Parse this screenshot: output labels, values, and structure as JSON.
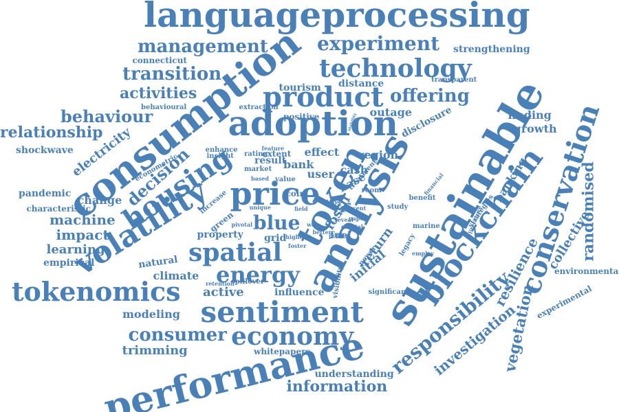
{
  "color": "#4a80b8",
  "words": [
    "languageprocessing",
    "consumption",
    "adoption",
    "sustainable",
    "analysis",
    "token",
    "blockchain",
    "conservation",
    "performance",
    "sentiment",
    "tokenomics",
    "volatility",
    "housing",
    "price",
    "spatial",
    "product",
    "technology",
    "economy",
    "experiment",
    "management",
    "transition",
    "offering",
    "energy",
    "consumer",
    "information",
    "behaviour",
    "relationship",
    "responsibility",
    "activities",
    "decision",
    "electricity",
    "machine",
    "impact",
    "learning",
    "blue",
    "randomised",
    "resilience",
    "vegetation",
    "investigation",
    "initial",
    "return",
    "collective",
    "banking",
    "growth",
    "finding",
    "strengthening",
    "connecticut",
    "tourism",
    "distance",
    "outage",
    "disclosure",
    "shockwave",
    "pandemic",
    "change",
    "characteristic",
    "empirical",
    "natural",
    "climate",
    "active",
    "modeling",
    "trimming",
    "whitepapers",
    "understanding",
    "influence",
    "property",
    "grid",
    "fuel",
    "green",
    "bank",
    "user",
    "cash",
    "base",
    "region",
    "effect",
    "result",
    "extent",
    "coin",
    "fossil",
    "environmental",
    "experimental",
    "marine",
    "transparent",
    "behavioural",
    "extraction",
    "positive",
    "econometric",
    "enhance",
    "insight",
    "rating",
    "feature",
    "market",
    "based",
    "value",
    "increase",
    "pivotal",
    "retention",
    "spillover",
    "visibility",
    "significant",
    "financial",
    "benefit",
    "study",
    "room",
    "treatment",
    "literature",
    "strategies",
    "power",
    "legacy",
    "employ",
    "higher",
    "foster",
    "unique",
    "field",
    "ttos",
    "view",
    "recent",
    "web",
    "better",
    "public",
    "coastal",
    "reveal",
    "paper",
    "stability"
  ]
}
